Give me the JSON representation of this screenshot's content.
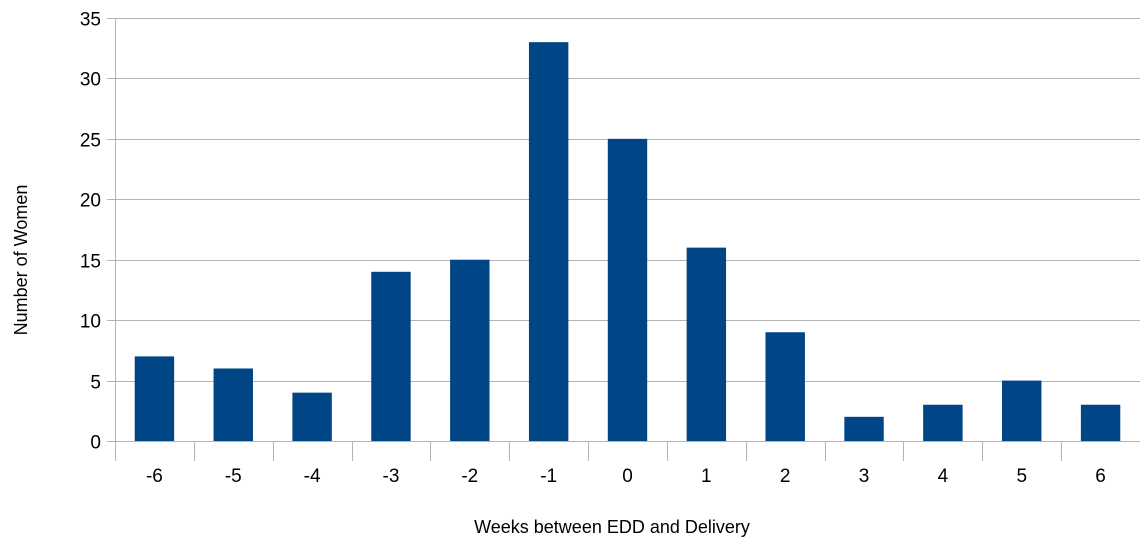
{
  "chart_data": {
    "type": "bar",
    "title": "",
    "xlabel": "Weeks between EDD and Delivery",
    "ylabel": "Number of Women",
    "categories": [
      "-6",
      "-5",
      "-4",
      "-3",
      "-2",
      "-1",
      "0",
      "1",
      "2",
      "3",
      "4",
      "5",
      "6"
    ],
    "values": [
      7,
      6,
      4,
      14,
      15,
      33,
      25,
      16,
      9,
      2,
      3,
      5,
      3
    ],
    "ylim": [
      0,
      35
    ],
    "yticks": [
      "0",
      "5",
      "10",
      "15",
      "20",
      "25",
      "30",
      "35"
    ],
    "grid": "horizontal",
    "legend": "none",
    "bar_color": "#004586",
    "grid_color": "#b3b3b3",
    "axis_color": "#b3b3b3"
  }
}
